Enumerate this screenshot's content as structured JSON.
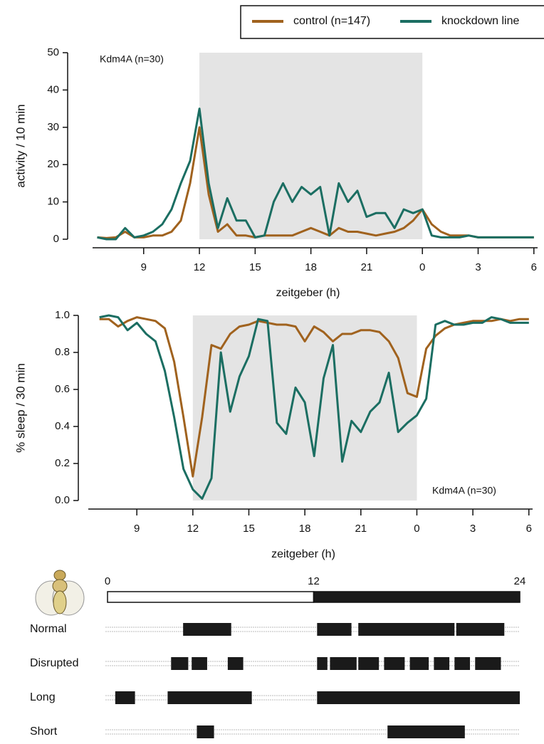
{
  "chart_data": [
    {
      "type": "line",
      "annotation": "Kdm4A (n=30)",
      "ylabel": "activity / 10 min",
      "xlabel": "zeitgeber (h)",
      "xlim": [
        6.25,
        30.2
      ],
      "xticks": [
        9,
        12,
        15,
        18,
        21,
        {
          "value": 24,
          "label": "0"
        },
        {
          "value": 27,
          "label": "3"
        },
        {
          "value": 30,
          "label": "6"
        }
      ],
      "ylim": [
        0,
        50
      ],
      "yticks": [
        0,
        10,
        20,
        30,
        40,
        50
      ],
      "shade": [
        12,
        24
      ],
      "x": [
        6.5,
        7,
        7.5,
        8,
        8.5,
        9,
        9.5,
        10,
        10.5,
        11,
        11.5,
        12,
        12.5,
        13,
        13.5,
        14,
        14.5,
        15,
        15.5,
        16,
        16.5,
        17,
        17.5,
        18,
        18.5,
        19,
        19.5,
        20,
        20.5,
        21,
        21.5,
        22,
        22.5,
        23,
        23.5,
        24,
        24.5,
        25,
        25.5,
        26,
        26.5,
        27,
        27.5,
        28,
        28.5,
        29,
        29.5,
        30
      ],
      "series": [
        {
          "name": "control (n=147)",
          "color": "#a0621e",
          "values": [
            0.5,
            0.3,
            0.5,
            2,
            0.5,
            0.5,
            1,
            1,
            2,
            5,
            15,
            30,
            12,
            2,
            4,
            1,
            1,
            0.5,
            1,
            1,
            1,
            1,
            2,
            3,
            2,
            1,
            3,
            2,
            2,
            1.5,
            1,
            1.5,
            2,
            3,
            5,
            8,
            4,
            2,
            1,
            1,
            1,
            0.5,
            0.5,
            0.5,
            0.5,
            0.5,
            0.5,
            0.5
          ]
        },
        {
          "name": "knockdown line",
          "color": "#1b6e62",
          "values": [
            0.5,
            0,
            0,
            3,
            0.5,
            1,
            2,
            4,
            8,
            15,
            21,
            35,
            15,
            3,
            11,
            5,
            5,
            0.5,
            1,
            10,
            15,
            10,
            14,
            12,
            14,
            1,
            15,
            10,
            13,
            6,
            7,
            7,
            3,
            8,
            7,
            8,
            1,
            0.5,
            0.5,
            0.5,
            1,
            0.5,
            0.5,
            0.5,
            0.5,
            0.5,
            0.5,
            0.5
          ]
        }
      ]
    },
    {
      "type": "line",
      "annotation": "Kdm4A (n=30)",
      "ylabel": "% sleep / 30 min",
      "xlabel": "zeitgeber (h)",
      "xlim": [
        6.4,
        30.2
      ],
      "xticks": [
        9,
        12,
        15,
        18,
        21,
        {
          "value": 24,
          "label": "0"
        },
        {
          "value": 27,
          "label": "3"
        },
        {
          "value": 30,
          "label": "6"
        }
      ],
      "ylim": [
        0,
        1
      ],
      "yticks": [
        {
          "value": 0,
          "label": "0.0"
        },
        {
          "value": 0.2,
          "label": "0.2"
        },
        {
          "value": 0.4,
          "label": "0.4"
        },
        {
          "value": 0.6,
          "label": "0.6"
        },
        {
          "value": 0.8,
          "label": "0.8"
        },
        {
          "value": 1,
          "label": "1.0"
        }
      ],
      "shade": [
        12,
        24
      ],
      "x": [
        7,
        7.5,
        8,
        8.5,
        9,
        9.5,
        10,
        10.5,
        11,
        11.5,
        12,
        12.5,
        13,
        13.5,
        14,
        14.5,
        15,
        15.5,
        16,
        16.5,
        17,
        17.5,
        18,
        18.5,
        19,
        19.5,
        20,
        20.5,
        21,
        21.5,
        22,
        22.5,
        23,
        23.5,
        24,
        24.5,
        25,
        25.5,
        26,
        26.5,
        27,
        27.5,
        28,
        28.5,
        29,
        29.5,
        30
      ],
      "series": [
        {
          "color": "#a0621e",
          "values": [
            0.98,
            0.98,
            0.94,
            0.97,
            0.99,
            0.98,
            0.97,
            0.93,
            0.75,
            0.45,
            0.13,
            0.45,
            0.84,
            0.82,
            0.9,
            0.94,
            0.95,
            0.97,
            0.96,
            0.95,
            0.95,
            0.94,
            0.86,
            0.94,
            0.91,
            0.86,
            0.9,
            0.9,
            0.92,
            0.92,
            0.91,
            0.86,
            0.77,
            0.58,
            0.56,
            0.82,
            0.89,
            0.93,
            0.95,
            0.96,
            0.97,
            0.97,
            0.97,
            0.98,
            0.97,
            0.98,
            0.98
          ]
        },
        {
          "color": "#1b6e62",
          "values": [
            0.99,
            1.0,
            0.99,
            0.92,
            0.96,
            0.9,
            0.86,
            0.7,
            0.45,
            0.17,
            0.06,
            0.01,
            0.12,
            0.8,
            0.48,
            0.67,
            0.78,
            0.98,
            0.97,
            0.42,
            0.36,
            0.61,
            0.53,
            0.24,
            0.66,
            0.84,
            0.21,
            0.43,
            0.37,
            0.48,
            0.53,
            0.69,
            0.37,
            0.42,
            0.46,
            0.55,
            0.95,
            0.97,
            0.95,
            0.95,
            0.96,
            0.96,
            0.99,
            0.98,
            0.96,
            0.96,
            0.96
          ]
        }
      ]
    }
  ],
  "diagram": {
    "day_ticks": [
      0,
      12,
      24
    ],
    "rows": [
      {
        "label": "Normal",
        "bouts": [
          [
            4.4,
            7.2
          ],
          [
            12.2,
            14.2
          ],
          [
            14.6,
            20.2
          ],
          [
            20.3,
            23.1
          ]
        ]
      },
      {
        "label": "Disrupted",
        "bouts": [
          [
            3.7,
            4.7
          ],
          [
            4.9,
            5.8
          ],
          [
            7.0,
            7.9
          ],
          [
            12.2,
            12.8
          ],
          [
            12.95,
            14.5
          ],
          [
            14.6,
            15.8
          ],
          [
            16.1,
            17.3
          ],
          [
            17.6,
            18.7
          ],
          [
            19.0,
            19.9
          ],
          [
            20.2,
            21.1
          ],
          [
            21.4,
            22.9
          ]
        ]
      },
      {
        "label": "Long",
        "bouts": [
          [
            0.45,
            1.6
          ],
          [
            3.5,
            8.4
          ],
          [
            12.2,
            24
          ]
        ]
      },
      {
        "label": "Short",
        "bouts": [
          [
            5.2,
            6.2
          ],
          [
            16.3,
            20.8
          ]
        ]
      }
    ]
  }
}
